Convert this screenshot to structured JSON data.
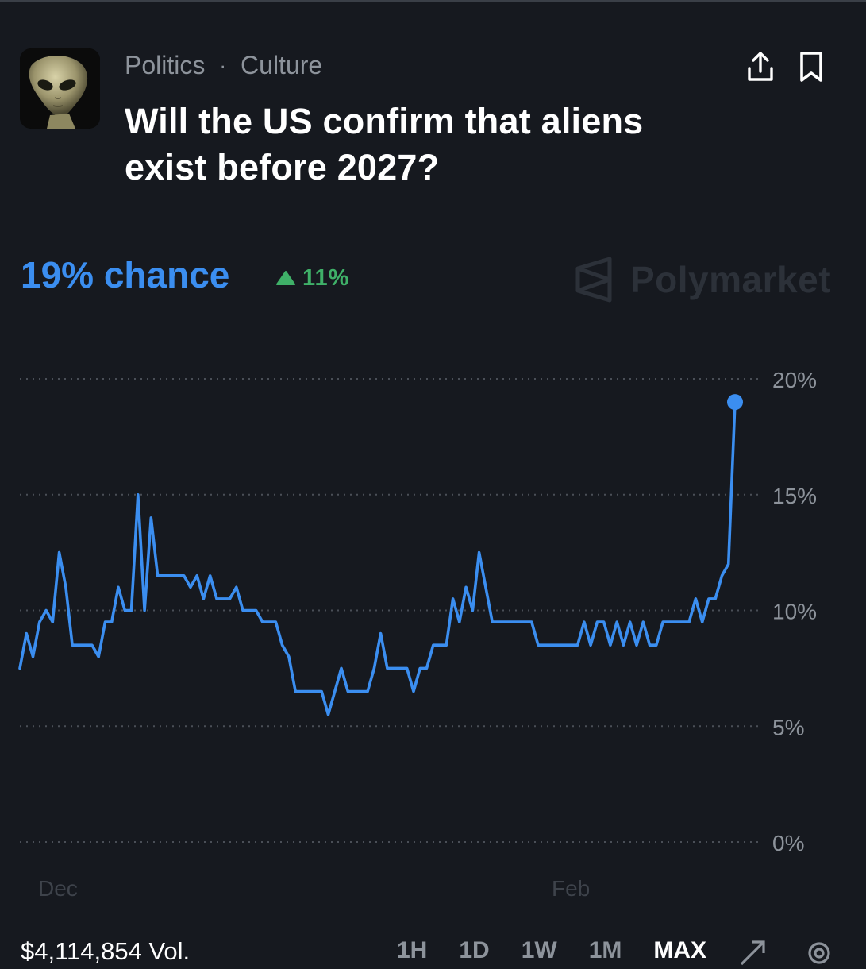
{
  "market": {
    "categories": [
      "Politics",
      "Culture"
    ],
    "separator": "·",
    "title": "Will the US confirm that aliens exist before 2027?",
    "chance_label": "19% chance",
    "change_label": "11%",
    "brand": "Polymarket",
    "icons": {
      "avatar": "alien-avatar",
      "share": "share-icon",
      "bookmark": "bookmark-icon",
      "change": "triangle-up-icon",
      "brand": "polymarket-logo-icon"
    }
  },
  "footer": {
    "volume_label": "$4,114,854 Vol.",
    "ranges": [
      "1H",
      "1D",
      "1W",
      "1M",
      "MAX"
    ],
    "active_range": "MAX"
  },
  "colors": {
    "background": "#16191f",
    "line": "#3b8ef0",
    "positive": "#3fb068",
    "muted": "#8d939b"
  },
  "chart_data": {
    "type": "line",
    "ylim": [
      0,
      20
    ],
    "y_ticks": [
      0,
      5,
      10,
      15,
      20
    ],
    "y_tick_labels": [
      "0%",
      "5%",
      "10%",
      "15%",
      "20%"
    ],
    "x_ticks": [
      "Dec",
      "Feb"
    ],
    "grid": "horizontal-dotted",
    "series": [
      {
        "values": [
          7.5,
          9.0,
          8.0,
          9.5,
          10.0,
          9.5,
          12.5,
          11.0,
          8.5,
          8.5,
          8.5,
          8.5,
          8.0,
          9.5,
          9.5,
          11.0,
          10.0,
          10.0,
          15.0,
          10.0,
          14.0,
          11.5,
          11.5,
          11.5,
          11.5,
          11.5,
          11.0,
          11.5,
          10.5,
          11.5,
          10.5,
          10.5,
          10.5,
          11.0,
          10.0,
          10.0,
          10.0,
          9.5,
          9.5,
          9.5,
          8.5,
          8.0,
          6.5,
          6.5,
          6.5,
          6.5,
          6.5,
          5.5,
          6.5,
          7.5,
          6.5,
          6.5,
          6.5,
          6.5,
          7.5,
          9.0,
          7.5,
          7.5,
          7.5,
          7.5,
          6.5,
          7.5,
          7.5,
          8.5,
          8.5,
          8.5,
          10.5,
          9.5,
          11.0,
          10.0,
          12.5,
          11.0,
          9.5,
          9.5,
          9.5,
          9.5,
          9.5,
          9.5,
          9.5,
          8.5,
          8.5,
          8.5,
          8.5,
          8.5,
          8.5,
          8.5,
          9.5,
          8.5,
          9.5,
          9.5,
          8.5,
          9.5,
          8.5,
          9.5,
          8.5,
          9.5,
          8.5,
          8.5,
          9.5,
          9.5,
          9.5,
          9.5,
          9.5,
          10.5,
          9.5,
          10.5,
          10.5,
          11.5,
          12.0,
          19.0
        ]
      }
    ]
  }
}
